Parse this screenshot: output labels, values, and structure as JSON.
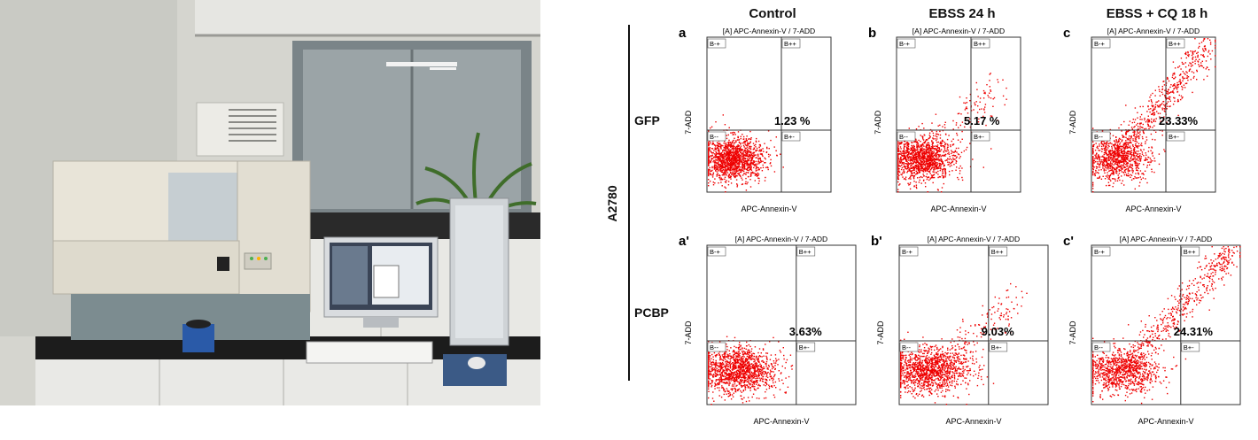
{
  "figure": {
    "column_headers": [
      "Control",
      "EBSS 24 h",
      "EBSS + CQ 18 h"
    ],
    "cell_line_label": "A2780",
    "row_labels": [
      "GFP",
      "PCBP"
    ],
    "panels": [
      {
        "letter": "a",
        "plot_title": "[A] APC-Annexin-V / 7-ADD",
        "percent": "1.23 %",
        "xlabel": "APC-Annexin-V",
        "ylabel": "7-ADD",
        "q_ul": "B-+",
        "q_ur": "B++",
        "q_ll": "B--",
        "q_lr": "B+-"
      },
      {
        "letter": "b",
        "plot_title": "[A] APC-Annexin-V / 7-ADD",
        "percent": "5.17 %",
        "xlabel": "APC-Annexin-V",
        "ylabel": "7-ADD",
        "q_ul": "B-+",
        "q_ur": "B++",
        "q_ll": "B--",
        "q_lr": "B+-"
      },
      {
        "letter": "c",
        "plot_title": "[A] APC-Annexin-V / 7-ADD",
        "percent": "23.33%",
        "xlabel": "APC-Annexin-V",
        "ylabel": "7-ADD",
        "q_ul": "B-+",
        "q_ur": "B++",
        "q_ll": "B--",
        "q_lr": "B+-"
      },
      {
        "letter": "a'",
        "plot_title": "[A] APC-Annexin-V / 7-ADD",
        "percent": "3.63%",
        "xlabel": "APC-Annexin-V",
        "ylabel": "7-ADD",
        "q_ul": "B-+",
        "q_ur": "B++",
        "q_ll": "B--",
        "q_lr": "B+-"
      },
      {
        "letter": "b'",
        "plot_title": "[A] APC-Annexin-V / 7-ADD",
        "percent": "9.03%",
        "xlabel": "APC-Annexin-V",
        "ylabel": "7-ADD",
        "q_ul": "B-+",
        "q_ur": "B++",
        "q_ll": "B--",
        "q_lr": "B+-"
      },
      {
        "letter": "c'",
        "plot_title": "[A] APC-Annexin-V / 7-ADD",
        "percent": "24.31%",
        "xlabel": "APC-Annexin-V",
        "ylabel": "7-ADD",
        "q_ul": "B-+",
        "q_ur": "B++",
        "q_ll": "B--",
        "q_lr": "B+-"
      }
    ],
    "dot_color": "#ee0000"
  },
  "photo": {
    "colors": {
      "wall": "#dcdcd6",
      "bench": "#1c1c1c",
      "instrument": "#e6e2d6",
      "instrument_base": "#7c8c90",
      "window": "#9aa3a6",
      "monitor_frame": "#d9dcdf",
      "screen": "#3a4456"
    }
  }
}
